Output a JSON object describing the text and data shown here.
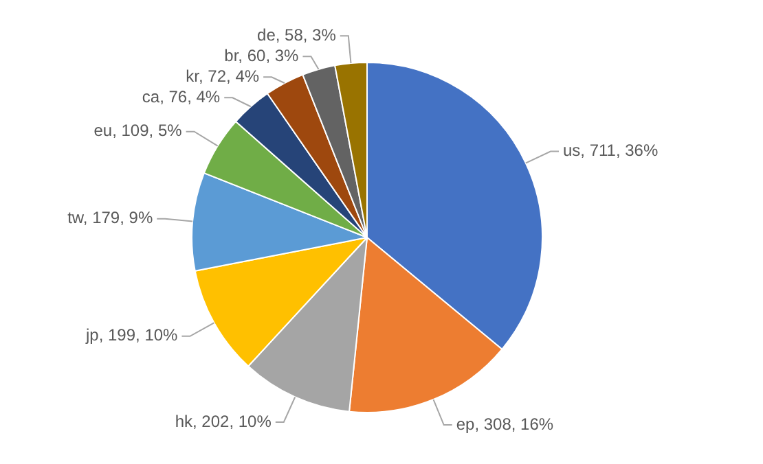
{
  "chart_data": {
    "type": "pie",
    "categories": [
      "us",
      "ep",
      "hk",
      "jp",
      "tw",
      "eu",
      "ca",
      "kr",
      "br",
      "de"
    ],
    "values": [
      711,
      308,
      202,
      199,
      179,
      109,
      76,
      72,
      60,
      58
    ],
    "value_labels": [
      "711, 36%",
      "308, 16%",
      "202, 10%",
      "199, 10%",
      "179, 9%",
      "109, 5%",
      "76, 4%",
      "72, 4%",
      "60, 3%",
      "58, 3%"
    ],
    "colors": [
      "#4472c4",
      "#ed7d31",
      "#a5a5a5",
      "#ffc000",
      "#5b9bd5",
      "#70ad47",
      "#264478",
      "#9e480e",
      "#636363",
      "#997300"
    ],
    "legend": false
  }
}
